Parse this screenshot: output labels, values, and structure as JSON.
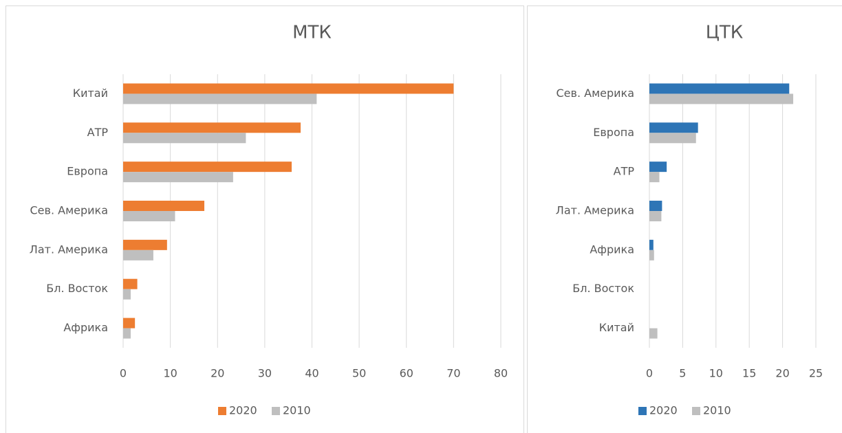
{
  "chart_data": [
    {
      "type": "barh",
      "title": "МТК",
      "categories": [
        "Китай",
        "АТР",
        "Европа",
        "Сев. Америка",
        "Лат. Америка",
        "Бл. Восток",
        "Африка"
      ],
      "series": [
        {
          "name": "2020",
          "color": "#ed7d31",
          "values": [
            70,
            37.6,
            35.7,
            17.2,
            9.3,
            3,
            2.5
          ]
        },
        {
          "name": "2010",
          "color": "#bfbfbf",
          "values": [
            41,
            26,
            23.3,
            11,
            6.4,
            1.6,
            1.6
          ]
        }
      ],
      "xlim": [
        0,
        80
      ],
      "xticks": [
        0,
        10,
        20,
        30,
        40,
        50,
        60,
        70,
        80
      ],
      "grid": true,
      "legend": "bottom"
    },
    {
      "type": "barh",
      "title": "ЦТК",
      "categories": [
        "Сев. Америка",
        "Европа",
        "АТР",
        "Лат. Америка",
        "Африка",
        "Бл. Восток",
        "Китай"
      ],
      "series": [
        {
          "name": "2020",
          "color": "#2e75b6",
          "values": [
            21,
            7.3,
            2.6,
            1.9,
            0.6,
            0,
            0
          ]
        },
        {
          "name": "2010",
          "color": "#bfbfbf",
          "values": [
            21.6,
            7,
            1.5,
            1.8,
            0.7,
            0,
            1.2
          ]
        }
      ],
      "xlim": [
        0,
        25
      ],
      "xticks": [
        0,
        5,
        10,
        15,
        20,
        25
      ],
      "grid": true,
      "legend": "bottom"
    }
  ]
}
